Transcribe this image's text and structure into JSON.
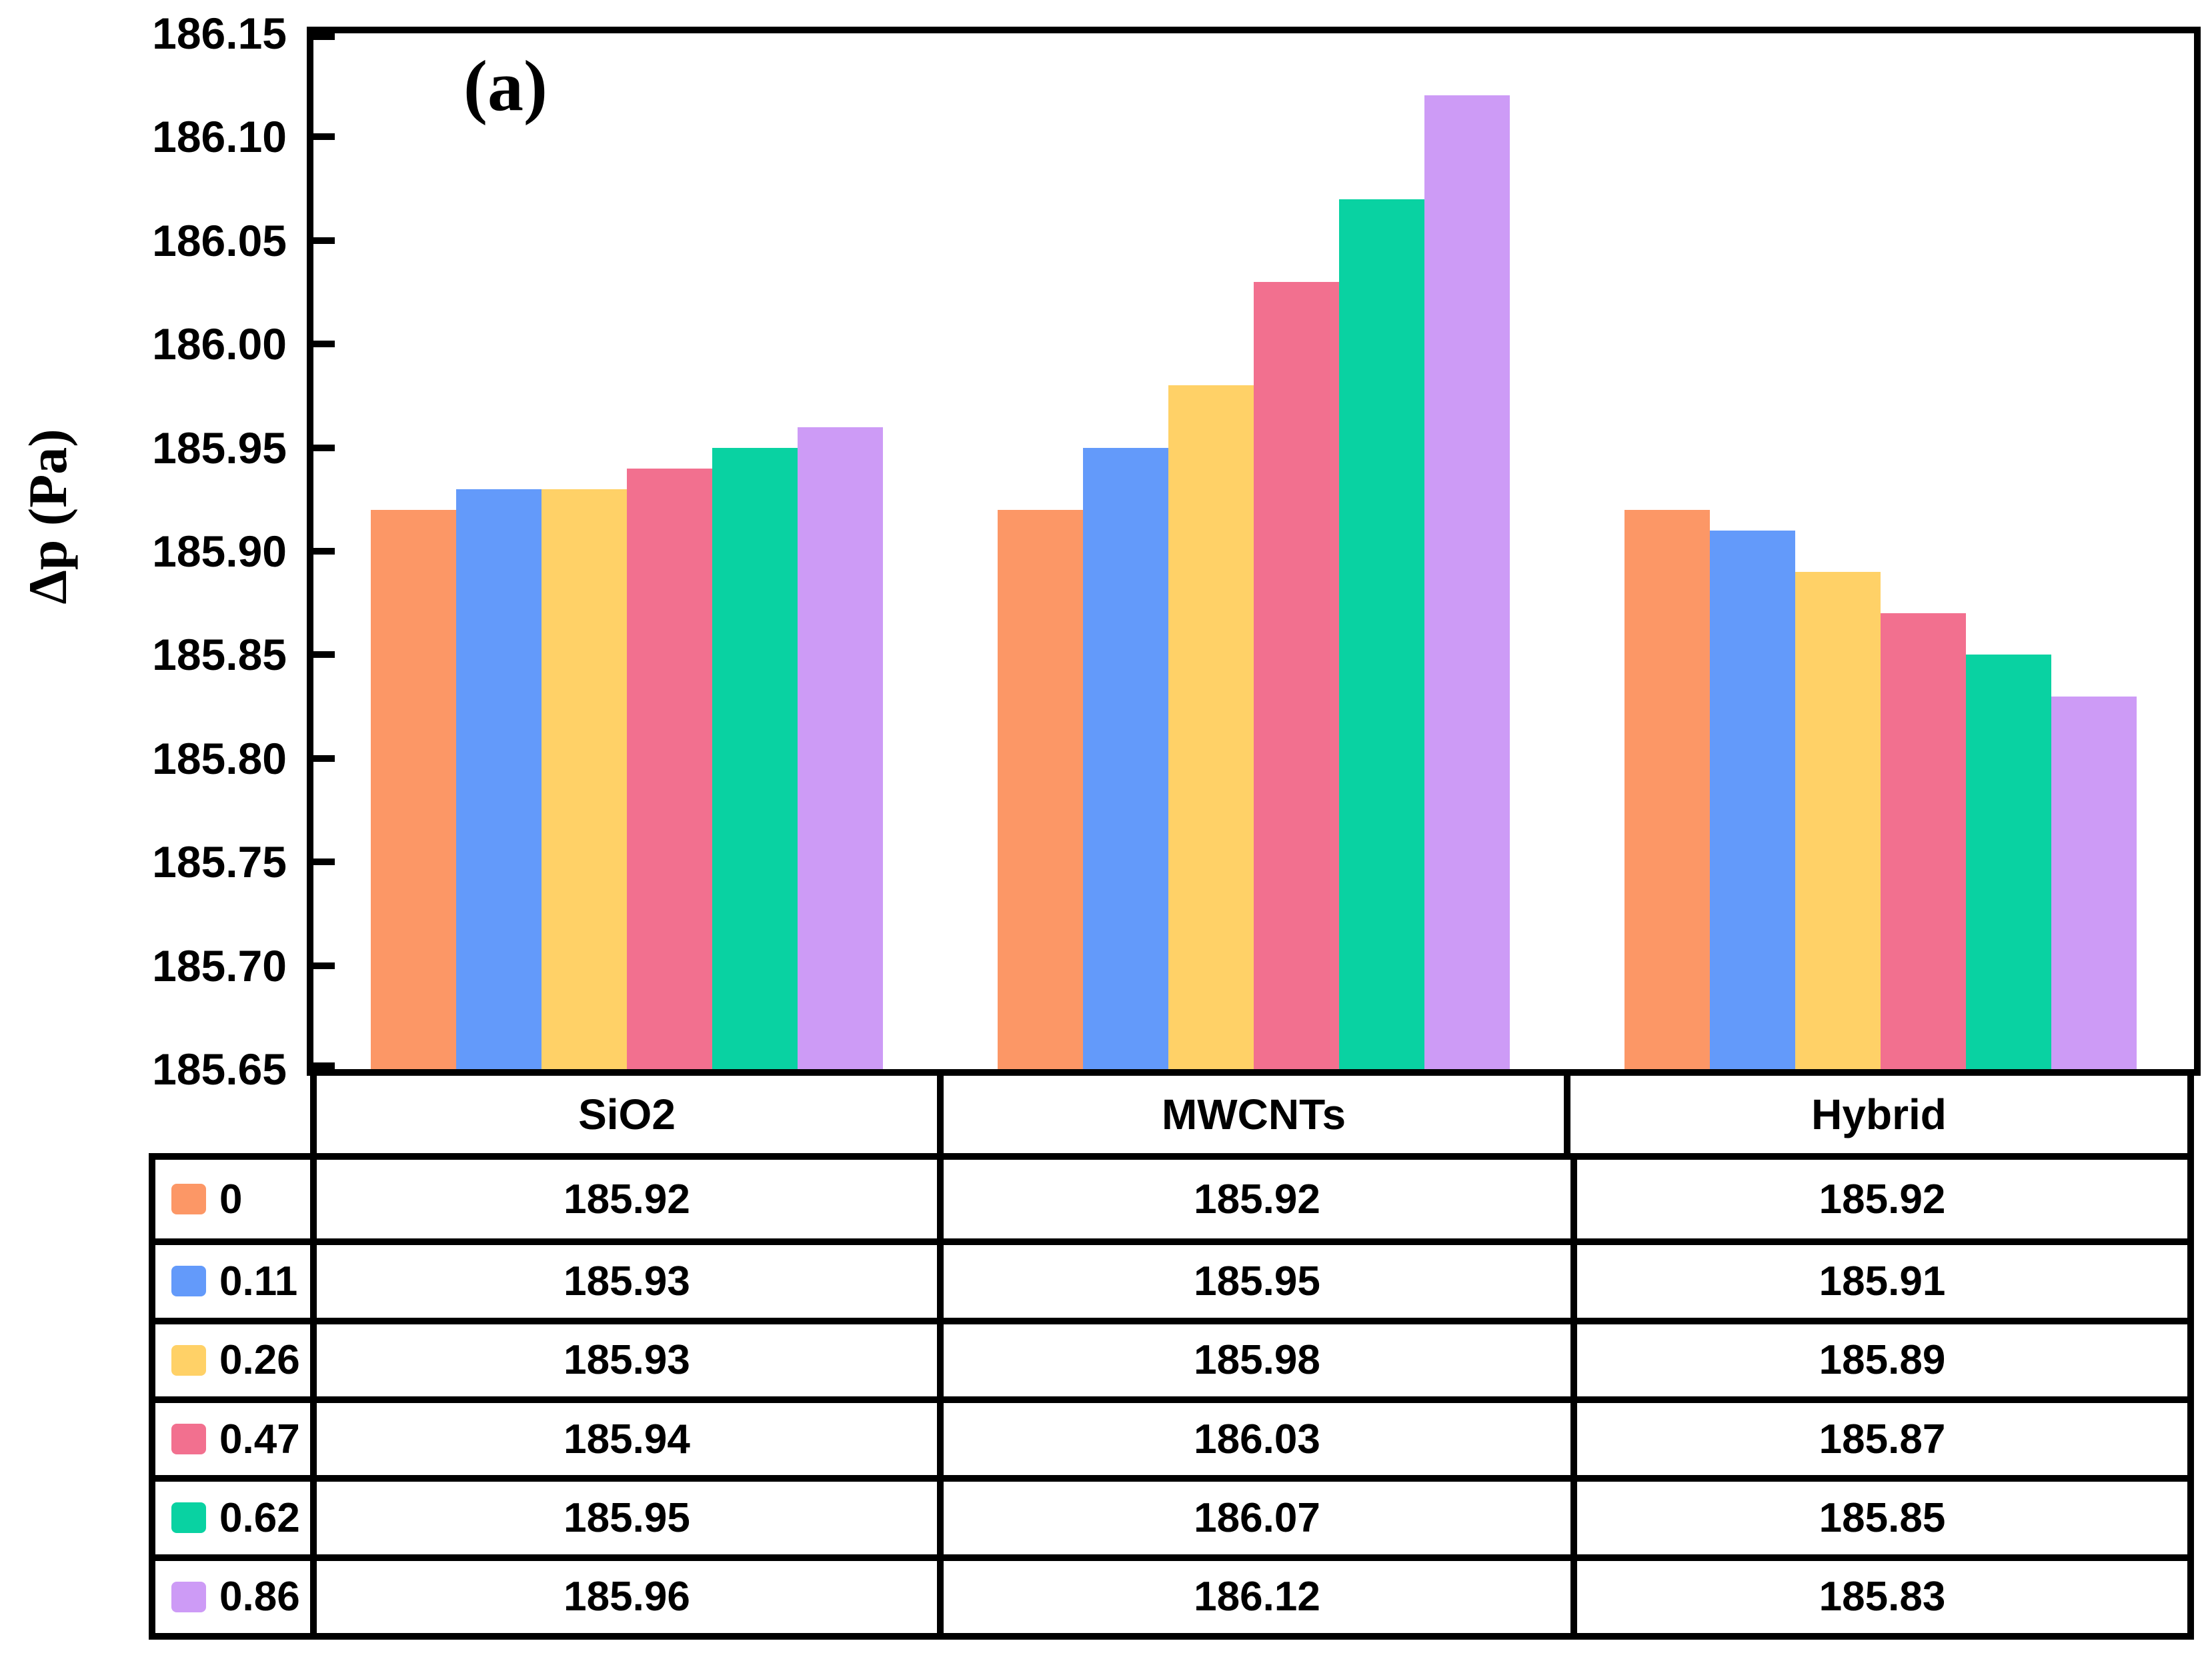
{
  "panel_label": "(a)",
  "y_axis": {
    "title": "Δp (Pa)",
    "min": 185.65,
    "max": 186.15,
    "tick_step": 0.05,
    "tick_labels": [
      "186.15",
      "186.10",
      "186.05",
      "186.00",
      "185.95",
      "185.90",
      "185.85",
      "185.80",
      "185.75",
      "185.70",
      "185.65"
    ]
  },
  "chart_data": {
    "type": "bar",
    "title": "",
    "xlabel": "",
    "ylabel": "Δp (Pa)",
    "ylim": [
      185.65,
      186.15
    ],
    "grid": false,
    "legend_position": "table-left",
    "categories": [
      "SiO2",
      "MWCNTs",
      "Hybrid"
    ],
    "series": [
      {
        "name": "0",
        "color": "#FC9766",
        "values": [
          185.92,
          185.92,
          185.92
        ]
      },
      {
        "name": "0.11",
        "color": "#639AFA",
        "values": [
          185.93,
          185.95,
          185.91
        ]
      },
      {
        "name": "0.26",
        "color": "#FFD167",
        "values": [
          185.93,
          185.98,
          185.89
        ]
      },
      {
        "name": "0.47",
        "color": "#F2708F",
        "values": [
          185.94,
          186.03,
          185.87
        ]
      },
      {
        "name": "0.62",
        "color": "#09D2A2",
        "values": [
          185.95,
          186.07,
          185.85
        ]
      },
      {
        "name": "0.86",
        "color": "#CD9BF6",
        "values": [
          185.96,
          186.12,
          185.83
        ]
      }
    ]
  },
  "table": {
    "column_headers": [
      "SiO2",
      "MWCNTs",
      "Hybrid"
    ],
    "rows": [
      {
        "legend": "0",
        "color": "#FC9766",
        "cells": [
          "185.92",
          "185.92",
          "185.92"
        ]
      },
      {
        "legend": "0.11",
        "color": "#639AFA",
        "cells": [
          "185.93",
          "185.95",
          "185.91"
        ]
      },
      {
        "legend": "0.26",
        "color": "#FFD167",
        "cells": [
          "185.93",
          "185.98",
          "185.89"
        ]
      },
      {
        "legend": "0.47",
        "color": "#F2708F",
        "cells": [
          "185.94",
          "186.03",
          "185.87"
        ]
      },
      {
        "legend": "0.62",
        "color": "#09D2A2",
        "cells": [
          "185.95",
          "186.07",
          "185.85"
        ]
      },
      {
        "legend": "0.86",
        "color": "#CD9BF6",
        "cells": [
          "185.96",
          "186.12",
          "185.83"
        ]
      }
    ]
  }
}
